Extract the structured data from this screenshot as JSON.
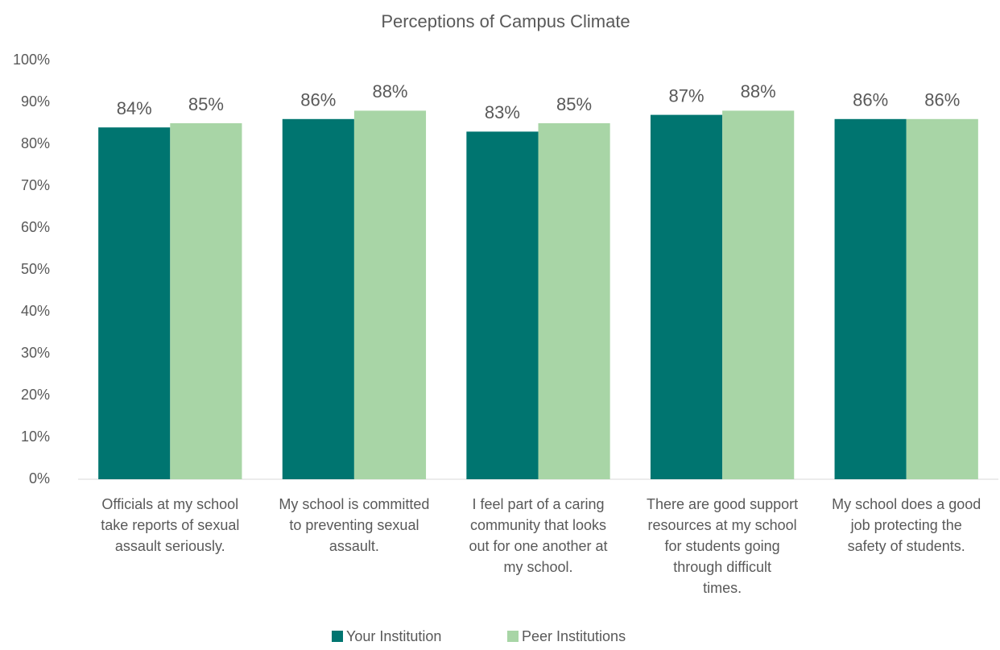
{
  "chart_data": {
    "type": "bar",
    "title": "Perceptions of Campus Climate",
    "categories": [
      "Officials at my school take reports of sexual assault seriously.",
      "My school is committed to preventing sexual assault.",
      "I feel part of a caring community that looks out for one another at my school.",
      "There are good support resources at my school for students going through difficult times.",
      "My school does a good job protecting the safety of students."
    ],
    "series": [
      {
        "name": "Your Institution",
        "color": "#007570",
        "values": [
          84,
          86,
          83,
          87,
          86
        ],
        "value_labels": [
          "84%",
          "86%",
          "83%",
          "87%",
          "86%"
        ]
      },
      {
        "name": "Peer Institutions",
        "color": "#a8d5a6",
        "values": [
          85,
          88,
          85,
          88,
          86
        ],
        "value_labels": [
          "85%",
          "88%",
          "85%",
          "88%",
          "86%"
        ]
      }
    ],
    "ylim": [
      0,
      100
    ],
    "yticks": [
      {
        "value": 0,
        "label": "0%"
      },
      {
        "value": 10,
        "label": "10%"
      },
      {
        "value": 20,
        "label": "20%"
      },
      {
        "value": 30,
        "label": "30%"
      },
      {
        "value": 40,
        "label": "40%"
      },
      {
        "value": 50,
        "label": "50%"
      },
      {
        "value": 60,
        "label": "60%"
      },
      {
        "value": 70,
        "label": "70%"
      },
      {
        "value": 80,
        "label": "80%"
      },
      {
        "value": 90,
        "label": "90%"
      },
      {
        "value": 100,
        "label": "100%"
      }
    ],
    "grid": false,
    "legend": "bottom"
  }
}
